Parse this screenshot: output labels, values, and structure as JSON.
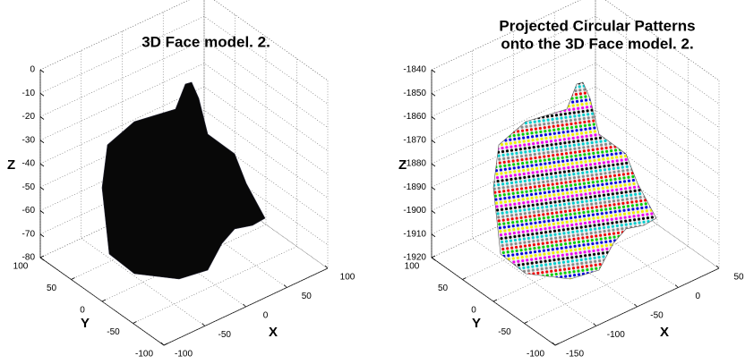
{
  "chart_data": [
    {
      "type": "surface",
      "title": "3D Face model. 2.",
      "xlabel": "X",
      "ylabel": "Y",
      "zlabel": "Z",
      "xlim": [
        -100,
        100
      ],
      "xticks": [
        -100,
        -50,
        0,
        50,
        100
      ],
      "ylim": [
        -100,
        100
      ],
      "yticks": [
        -100,
        -50,
        0,
        50,
        100
      ],
      "zlim": [
        -80,
        0
      ],
      "zticks": [
        -80,
        -70,
        -60,
        -50,
        -40,
        -30,
        -20,
        -10,
        0
      ],
      "grid": true,
      "color": "#080808"
    },
    {
      "type": "pattern-surface",
      "title": [
        "Projected Circular Patterns",
        "onto the 3D Face model. 2."
      ],
      "xlabel": "X",
      "ylabel": "Y",
      "zlabel": "Z",
      "xlim": [
        -150,
        50
      ],
      "xticks": [
        -150,
        -100,
        -50,
        0,
        50
      ],
      "ylim": [
        -100,
        100
      ],
      "yticks": [
        -100,
        -50,
        0,
        50,
        100
      ],
      "zlim": [
        -1920,
        -1840
      ],
      "zticks": [
        -1920,
        -1910,
        -1900,
        -1890,
        -1880,
        -1870,
        -1860,
        -1850,
        -1840
      ],
      "grid": true
    }
  ]
}
